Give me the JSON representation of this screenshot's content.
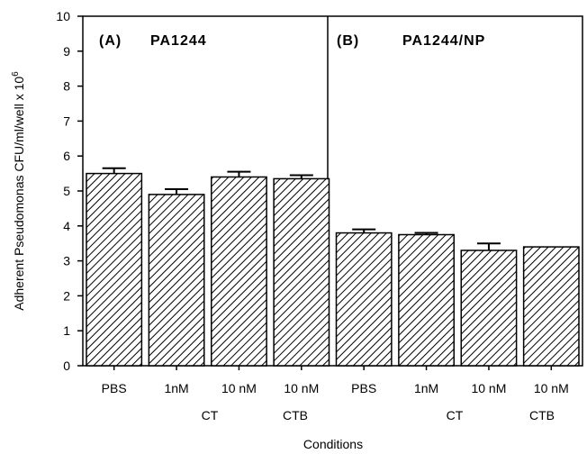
{
  "chart_data": {
    "type": "bar",
    "ylabel": "Adherent Pseudomonas CFU/ml/well x 10",
    "ylabel_exponent": "6",
    "xlabel": "Conditions",
    "ylim": [
      0,
      10
    ],
    "yticks": [
      "0",
      "1",
      "2",
      "3",
      "4",
      "5",
      "6",
      "7",
      "8",
      "9",
      "10"
    ],
    "grid": false,
    "panels": [
      {
        "label": "(A)",
        "strain": "PA1244",
        "categories": [
          "PBS",
          "1nM",
          "10 nM",
          "10 nM"
        ],
        "values": [
          5.5,
          4.9,
          5.4,
          5.35
        ],
        "errors": [
          0.15,
          0.15,
          0.15,
          0.1
        ]
      },
      {
        "label": "(B)",
        "strain": "PA1244/NP",
        "categories": [
          "PBS",
          "1nM",
          "10 nM",
          "10 nM"
        ],
        "values": [
          3.8,
          3.75,
          3.3,
          3.4
        ],
        "errors": [
          0.1,
          0.05,
          0.2,
          0.0
        ]
      }
    ],
    "group_labels": [
      "CT",
      "CTB",
      "CT",
      "CTB"
    ]
  }
}
